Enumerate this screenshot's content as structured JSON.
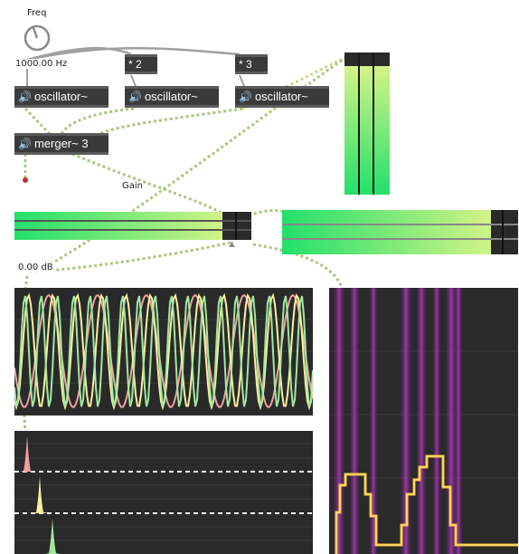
{
  "freq_dial": {
    "label": "Freq",
    "value": "1000.00 Hz"
  },
  "multipliers": [
    {
      "label": "* 2"
    },
    {
      "label": "* 3"
    }
  ],
  "oscillators": [
    {
      "label": "oscillator~"
    },
    {
      "label": "oscillator~"
    },
    {
      "label": "oscillator~"
    }
  ],
  "merger": {
    "label": "merger~ 3"
  },
  "gain": {
    "label": "Gain",
    "value": "0.00 dB"
  },
  "icons": {
    "speaker": "🔊",
    "dial": "dial-icon",
    "triangle": "▲"
  },
  "colors": {
    "patch_cord_signal": "#a8c87a",
    "patch_cord_control": "#9a9a9a",
    "meter_green": "#22e06a",
    "meter_yellow": "#e9f58a",
    "scope_bg": "#2a2a2a",
    "osc1": "#f0a0a0",
    "osc2": "#f8f0a0",
    "osc3": "#a0e8a0",
    "spectrogram_bg": "#2a2a2a"
  }
}
